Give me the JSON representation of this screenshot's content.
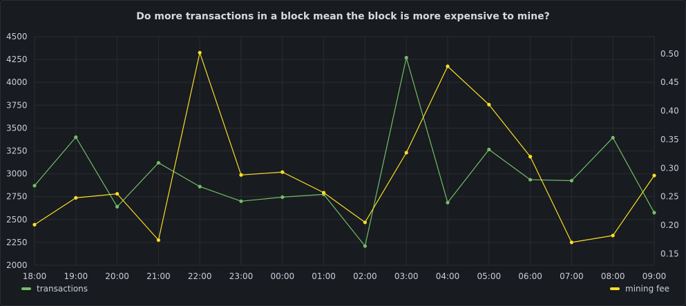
{
  "panel": {
    "title": "Do more transactions in a block mean the block is more expensive to mine?"
  },
  "chart_data": {
    "type": "line",
    "title": "Do more transactions in a block mean the block is more expensive to mine?",
    "x": [
      "18:00",
      "19:00",
      "20:00",
      "21:00",
      "22:00",
      "23:00",
      "00:00",
      "01:00",
      "02:00",
      "03:00",
      "04:00",
      "05:00",
      "06:00",
      "07:00",
      "08:00",
      "09:00"
    ],
    "left_axis": {
      "ylim": [
        2000,
        4500
      ],
      "ticks": [
        2000,
        2250,
        2500,
        2750,
        3000,
        3250,
        3500,
        3750,
        4000,
        4250,
        4500
      ]
    },
    "right_axis": {
      "ylim": [
        0.13,
        0.53
      ],
      "ticks": [
        "0.15",
        "0.20",
        "0.25",
        "0.30",
        "0.35",
        "0.40",
        "0.45",
        "0.50"
      ]
    },
    "grid": true,
    "legend": [
      "bottom-left",
      "bottom-right"
    ],
    "series": [
      {
        "name": "transactions",
        "axis": "left",
        "color": "#73bf69",
        "values": [
          2870,
          3400,
          2640,
          3120,
          2860,
          2700,
          2745,
          2775,
          2210,
          4270,
          2685,
          3265,
          2935,
          2925,
          3395,
          2575
        ]
      },
      {
        "name": "mining fee",
        "axis": "right",
        "color": "#fade2a",
        "values": [
          0.201,
          0.248,
          0.255,
          0.174,
          0.502,
          0.288,
          0.293,
          0.257,
          0.205,
          0.327,
          0.478,
          0.411,
          0.32,
          0.17,
          0.182,
          0.287
        ]
      }
    ]
  }
}
